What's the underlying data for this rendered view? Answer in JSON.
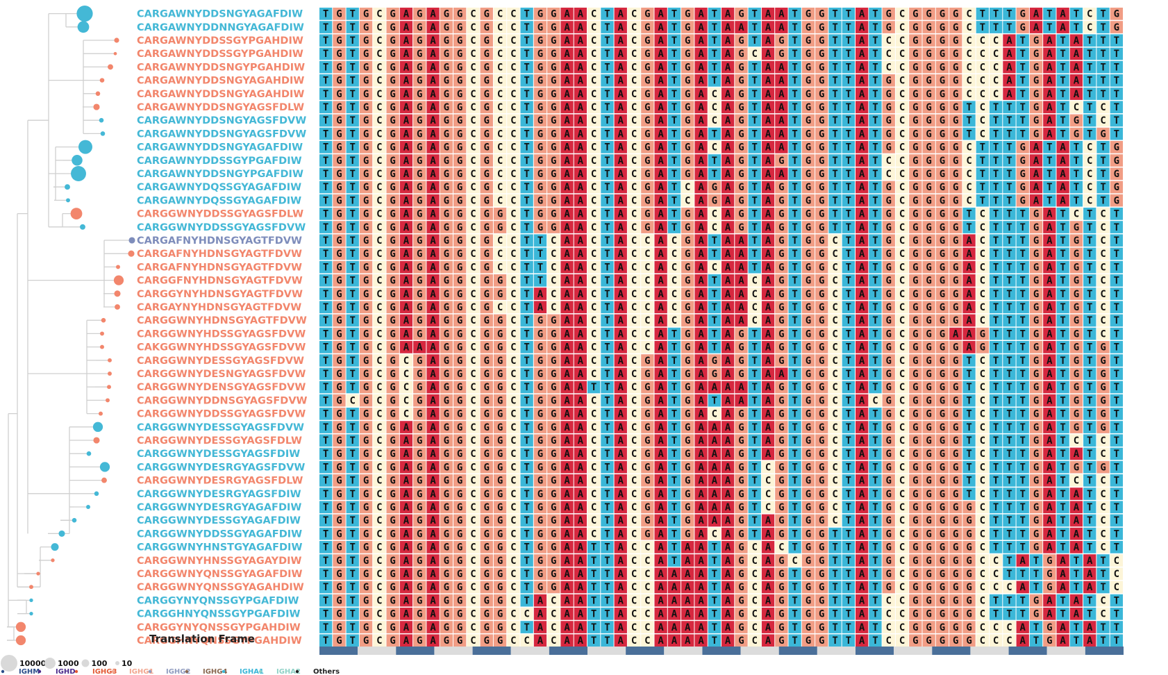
{
  "colors": {
    "blue_label": "#44b8d6",
    "salmon_label": "#f2866c",
    "purple_label": "#7e8dbb",
    "T": "#3bb7d8",
    "G": "#f19d85",
    "A": "#d6283f",
    "C": "#fdf5d8",
    "frame_on": "#4a6f99",
    "frame_off": "#dcdcdc",
    "tree": "#cfcfcf",
    "size_circle": "#d9d9d9"
  },
  "rows": [
    {
      "label": "CARGAWNYDDSNGYAGAFDIW",
      "iso": "IGHA1",
      "size": 3,
      "seq": "TGTGCGAGAGGCGCCTGGAACTACGATGATAGTAATGGTTATGCGGGGCTTTGATATCTGG"
    },
    {
      "label": "CARGAWNYDDNNGYAGAFDIW",
      "iso": "IGHA1",
      "size": 2,
      "seq": "TGTGCGAGAGGCGCCTGGAACTACGATGATAATAATGGTTATGCGGGGCTTTGATATCTGG"
    },
    {
      "label": "CARGAWNYDDSSGYPGAHDIW",
      "iso": "IGHG1",
      "size": 0.5,
      "seq": "TGTGCGAGAGGCGCCTGGAACTACGATGATAGTAGTGGTTATCCGGGGCCCATGATATTTGG"
    },
    {
      "label": "CARGAWNYDDSSGYPGAHDIW",
      "iso": "IGHG1",
      "size": 0.1,
      "seq": "TGTGCGAGAGGCGCCTGGAACTACGATGATAGCAGTGGTTATCCGGGGCCCATGATATTTGG"
    },
    {
      "label": "CARGAWNYDDSNGYPGAHDIW",
      "iso": "IGHG1",
      "size": 0.6,
      "seq": "TGTGCGAGAGGCGCCTGGAACTACGATGATAGTAATGGTTATCCGGGGCCCATGATATTTGG"
    },
    {
      "label": "CARGAWNYDDSNGYAGAHDIW",
      "iso": "IGHG1",
      "size": 0.4,
      "seq": "TGTGCGAGAGGCGCCTGGAACTACGATGATAGTAATGGTTATGCGGGGCCCATGATATTTGG"
    },
    {
      "label": "CARGAWNYDDSNGYAGAHDIW",
      "iso": "IGHG1",
      "size": 0.4,
      "seq": "TGTGCGAGAGGCGCCTGGAACTACGATGACAGTAATGGTTATGCGGGGCCCATGATATTTGG"
    },
    {
      "label": "CARGAWNYDDSNGYAGSFDLW",
      "iso": "IGHG1",
      "size": 0.8,
      "seq": "TGTGCGAGAGGCGCCTGGAACTACGATGACAGTAATGGTTATGCGGGGTCTTTGATCTCTGG"
    },
    {
      "label": "CARGAWNYDDSNGYAGSFDVW",
      "iso": "IGHA1",
      "size": 0.4,
      "seq": "TGTGCGAGAGGCGCCTGGAACTACGATGACAGTAATGGTTATGCGGGGTCTTTGATGTCTGG"
    },
    {
      "label": "CARGAWNYDDSNGYAGSFDVW",
      "iso": "IGHA1",
      "size": 0.4,
      "seq": "TGTGCGAGAGGCGCCTGGAACTACGATGATAGTAATGGTTATGCGGGGTCTTTGATGTGTGG"
    },
    {
      "label": "CARGAWNYDDSNGYAGAFDIW",
      "iso": "IGHA1",
      "size": 2.5,
      "seq": "TGTGCGAGAGGCGCCTGGAACTACGATGACAGTAATGGTTATGCGGGGCTTTGATATCTGG"
    },
    {
      "label": "CARGAWNYDDSSGYPGAFDIW",
      "iso": "IGHA1",
      "size": 1.8,
      "seq": "TGTGCGAGAGGCGCCTGGAACTACGATGATAGTAGTGGTTATCCGGGGCTTTGATATCTGG"
    },
    {
      "label": "CARGAWNYDDSNGYPGAFDIW",
      "iso": "IGHA1",
      "size": 2.8,
      "seq": "TGTGCGAGAGGCGCCTGGAACTACGATGATAGTAATGGTTATCCGGGGCTTTGATATCTGG"
    },
    {
      "label": "CARGAWNYDQSSGYAGAFDIW",
      "iso": "IGHA1",
      "size": 0.6,
      "seq": "TGTGCGAGAGGCGCCTGGAACTACGATCAGAGTAGTGGTTATGCGGGGCTTTGATATCTGG"
    },
    {
      "label": "CARGAWNYDQSSGYAGAFDIW",
      "iso": "IGHA1",
      "size": 0.3,
      "seq": "TGTGCGAGAGGCGCCTGGAACTACGATCAGAGTAGTGGTTATGCGGGGCTTTGATATCTGG"
    },
    {
      "label": "CARGGWNYDDSSGYAGSFDLW",
      "iso": "IGHG1",
      "size": 2,
      "seq": "TGTGCGAGAGGCGGCTGGAACTACGATGACAGTAGTGGTTATGCGGGGTCTTTGATCTCTGG"
    },
    {
      "label": "CARGGWNYDDSSGYAGSFDVW",
      "iso": "IGHA1",
      "size": 0.6,
      "seq": "TGTGCGAGAGGCGGCTGGAACTACGATGACAGTAGTGGTTATGCGGGGTCTTTGATGTCTGG"
    },
    {
      "label": "CARGAFNYHDNSGYAGTFDVW",
      "iso": "IGHG2",
      "size": 0.8,
      "seq": "TGTGCGAGAGGCGCCTTCAACTACCACGATAATAGTGGCTATGCGGGGACTTTGATGTCTGG"
    },
    {
      "label": "CARGAFNYHDNSGYAGTFDVW",
      "iso": "IGHG1",
      "size": 0.8,
      "seq": "TGTGCGAGAGGCGCCTTCAACTACCACGATAATAGTGGCTATGCGGGGACTTTGATGTCTGG"
    },
    {
      "label": "CARGAFNYHDNSGYAGTFDVW",
      "iso": "IGHG1",
      "size": 0.3,
      "seq": "TGTGCGAGAGGCGCCTTCAACTACCACGACAATAGTGGCTATGCGGGGACTTTGATGTCTGG"
    },
    {
      "label": "CARGGFNYHDNSGYAGTFDVW",
      "iso": "IGHG1",
      "size": 1.6,
      "seq": "TGTGCGAGAGGCGGCTTCAACTACCACGATAACAGTGGCTATGCGGGGACTTTGATGTCTGG"
    },
    {
      "label": "CARGGYNYHDNSGYAGTFDVW",
      "iso": "IGHG1",
      "size": 0.8,
      "seq": "TGTGCGAGAGGCGGCTACAACTACCACGATAACAGTGGCTATGCGGGGACTTTGATGTCTGG"
    },
    {
      "label": "CARGAYNYHDNSGYAGTFDVW",
      "iso": "IGHG1",
      "size": 0.6,
      "seq": "TGTGCGAGAGGCGCCTACAACTACCACGATAACAGTGGCTATGCGGGGACTTTGATGTCTGG"
    },
    {
      "label": "CARGGWNYHDNSGYAGTFDVW",
      "iso": "IGHG1",
      "size": 0.4,
      "seq": "TGTGCGAGAGGCGGCTGGAACTACCACGATAACAGTGGCTATGCGGGGACTTTGATGTCTGG"
    },
    {
      "label": "CARGGWNYHDSSGYAGSFDVW",
      "iso": "IGHG1",
      "size": 0.3,
      "seq": "TGTGCGAGAGGCGGCTGGAACTACCATGATAGTAGTGGCTATGCGGGAAGTTTGATGTCTGG"
    },
    {
      "label": "CAKGGWNYHDSSGYAGSFDVW",
      "iso": "IGHG1",
      "size": 0.3,
      "seq": "TGTGCGAAAGGCGGCTGGAACTACCATGATAGTAGTGGCTATGCGGGGAGTTTGATGTGTGG"
    },
    {
      "label": "CARGGWNYDESSGYAGSFDVW",
      "iso": "IGHG1",
      "size": 0.3,
      "seq": "TGTGCGCGAGGCGGCTGGAACTACGATGAGAGTAGTGGCTATGCGGGGTCTTTGATGTGTGG"
    },
    {
      "label": "CARGGWNYDESNGYAGSFDVW",
      "iso": "IGHG1",
      "size": 0.3,
      "seq": "TGTGCGCGAGGCGGCTGGAACTACGATGAGAGTAATGGCTATGCGGGGTCTTTGATGTGTGG"
    },
    {
      "label": "CARGGWNYDENSGYAGSFDVW",
      "iso": "IGHG1",
      "size": 0.3,
      "seq": "TGTGCGCGAGGCGGCTGGAATTACGATGAAAATAGTGGCTATGCGGGGTCTTTGATGTGTGG"
    },
    {
      "label": "CARGGWNYDDNSGYAGSFDVW",
      "iso": "IGHG1",
      "size": 0.3,
      "seq": "TGCGCGCGAGGCGGCTGGAACTACGATGATAATAGTGGCTACGCGGGGTCTTTGATGTGTGG"
    },
    {
      "label": "CARGGWNYDDSSGYAGSFDVW",
      "iso": "IGHG1",
      "size": 0.3,
      "seq": "TGTGCGCGAGGCGGCTGGAACTACGATGACAGTAGTGGCTATGCGGGGTCTTTGATGTGTGG"
    },
    {
      "label": "CARGGWNYDESSGYAGSFDVW",
      "iso": "IGHA1",
      "size": 1.6,
      "seq": "TGTGCGAGAGGCGGCTGGAACTACGATGAAAGTAGTGGCTATGCGGGGTCTTTGATGTGTGG"
    },
    {
      "label": "CARGGWNYDESSGYAGSFDLW",
      "iso": "IGHG1",
      "size": 0.8,
      "seq": "TGTGCGAGAGGCGGCTGGAACTACGATGAAAGTAGTGGCTATGCGGGGTCTTTGATCTCTGG"
    },
    {
      "label": "CARGGWNYDESSGYAGSFDIW",
      "iso": "IGHA1",
      "size": 0.4,
      "seq": "TGTGCGAGAGGCGGCTGGAACTACGATGAAAGTAGTGGCTATGCGGGGTCTTTGATATCTGG"
    },
    {
      "label": "CARGGWNYDESRGYAGSFDVW",
      "iso": "IGHA1",
      "size": 1.6,
      "seq": "TGTGCGAGAGGCGGCTGGAACTACGATGAAAGTCGTGGCTATGCGGGGTCTTTGATGTGTGG"
    },
    {
      "label": "CARGGWNYDESRGYAGSFDLW",
      "iso": "IGHG1",
      "size": 0.6,
      "seq": "TGTGCGAGAGGCGGCTGGAACTACGATGAAAGTCGTGGCTATGCGGGGTCTTTGATCTCTGG"
    },
    {
      "label": "CARGGWNYDESRGYAGSFDIW",
      "iso": "IGHA1",
      "size": 0.4,
      "seq": "TGTGCGAGAGGCGGCTGGAACTACGATGAAAGTCGTGGCTATGCGGGGTCTTTGATATCTGG"
    },
    {
      "label": "CARGGWNYDESRGYAGAFDIW",
      "iso": "IGHA1",
      "size": 0.3,
      "seq": "TGTGCGAGAGGCGGCTGGAACTACGATGAAAGTCGTGGCTATGCGGGGGCTTTGATATCTGG"
    },
    {
      "label": "CARGGWNYDESSGYAGAFDIW",
      "iso": "IGHA1",
      "size": 0.4,
      "seq": "TGTGCGAGAGGCGGCTGGAACTACGATGAAAGTAGTGGCTATGCGGGGGCTTTGATATCTGG"
    },
    {
      "label": "CARGGWNYDDSSGYAGAFDIW",
      "iso": "IGHA1",
      "size": 0.8,
      "seq": "TGTGCGAGAGGCGGCTGGAACTACGATGACAGTAGTGGTTATGCGGGGGCTTTGATATCTGG"
    },
    {
      "label": "CARGGWNYHNSTGYAGAFDIW",
      "iso": "IGHA1",
      "size": 1.1,
      "seq": "TGTGCGAGAGGCGGCTGGAATTACCATAATAGCACTGGTTATGCGGGGGCTTTGATATCTGG"
    },
    {
      "label": "CARGGWNYHNSSGYAGAYDIW",
      "iso": "IGHG1",
      "size": 0.2,
      "seq": "TGTGCGAGAGGCGGCTGGAATTACCATAATAGCAGCGGTTATGCGGGGGCCTATGATATCTGG"
    },
    {
      "label": "CARGGWNYQNSSGYAGAFDIW",
      "iso": "IGHG1",
      "size": 0.2,
      "seq": "TGTGCGAGAGGCGGCTGGAATTACCAAAATAGCAGTGGTTATGCGGGGGCCTTTGATATCTGG"
    },
    {
      "label": "CARGGWNYQNSSGYAGAHDIW",
      "iso": "IGHG1",
      "size": 0.3,
      "seq": "TGTGCGAGAGGCGGCTGGAATTACCAAAATAGCAGTGGTTATGCGGGGGCCCATGATATCTGG"
    },
    {
      "label": "CARGGYNYQNSSGYPGAFDIW",
      "iso": "IGHA1",
      "size": 0.2,
      "seq": "TGTGCGAGAGGCGGCTACAATTACCAAAATAGCAGTGGTTATCCGGGGGCTTTGATATCTGG"
    },
    {
      "label": "CARGGHNYQNSSGYPGAFDIW",
      "iso": "IGHA1",
      "size": 0.2,
      "seq": "TGTGCGAGAGGCGGCCACAATTACCAAAATAGCAGTGGTTATCCGGGGGCTTTGATATCTGG"
    },
    {
      "label": "CARGGYNYQNSSGYPGAHDIW",
      "iso": "IGHG1",
      "size": 1.6,
      "seq": "TGTGCGAGAGGCGGCTACAATTACCAAAATAGCAGTGGTTATCCGGGGGCCCATGATATTTGG"
    },
    {
      "label": "CARGGHNYQNSSGYPGAHDIW",
      "iso": "IGHG1",
      "size": 1.6,
      "seq": "TGTGCGAGAGGCGGCCACAATTACCAAAATAGCAGTGGTTATCCGGGGGCCCATGATATTTGG"
    }
  ],
  "translation_frame": {
    "title": "Translation Frame",
    "segments": 21
  },
  "size_legend": [
    {
      "label": "10000",
      "r": 12
    },
    {
      "label": "1000",
      "r": 8
    },
    {
      "label": "100",
      "r": 5.5
    },
    {
      "label": "10",
      "r": 3
    }
  ],
  "isotype_legend": [
    {
      "label": "IGHM",
      "color": "#2b4d8a"
    },
    {
      "label": "IGHD",
      "color": "#4b2a8a"
    },
    {
      "label": "IGHG3",
      "color": "#e35a36"
    },
    {
      "label": "IGHG1",
      "color": "#f2a68f"
    },
    {
      "label": "IGHG2",
      "color": "#8f9bbf"
    },
    {
      "label": "IGHG4",
      "color": "#8a6850"
    },
    {
      "label": "IGHA1",
      "color": "#3bb7d8"
    },
    {
      "label": "IGHA2",
      "color": "#8ed1c6"
    },
    {
      "label": "Others",
      "color": "#222222"
    }
  ],
  "isotype_colors": {
    "IGHA1": "#44b8d6",
    "IGHG1": "#f2866c",
    "IGHG2": "#7e8dbb"
  }
}
